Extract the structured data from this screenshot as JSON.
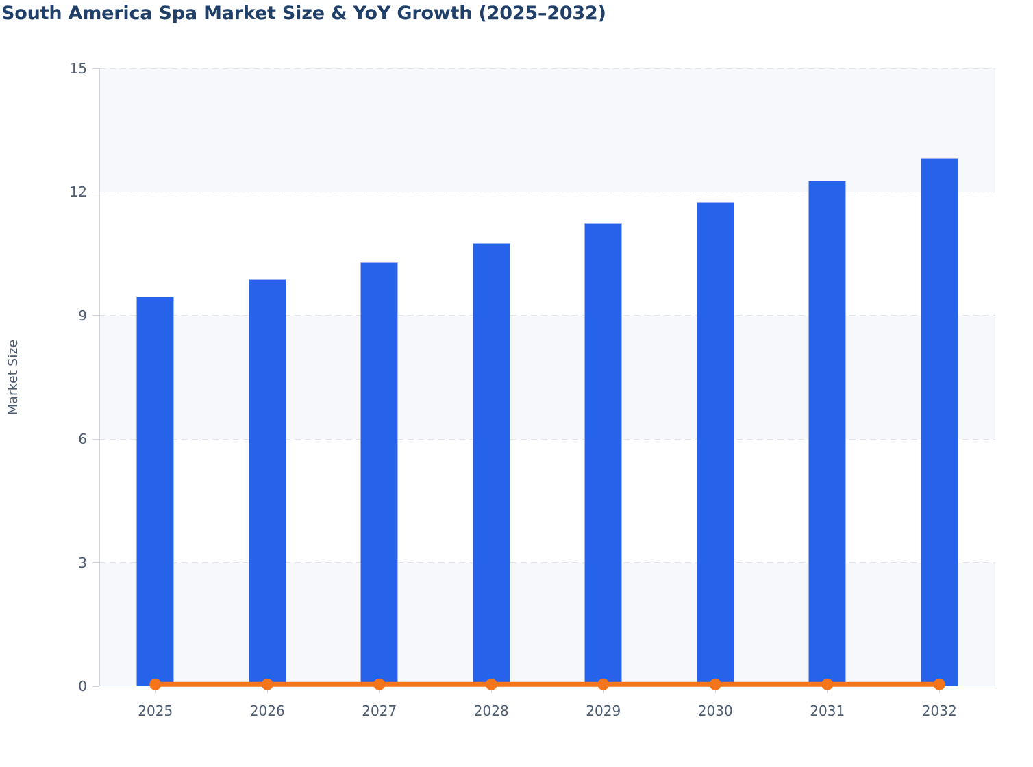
{
  "page": {
    "background": "#ffffff"
  },
  "chart_data": {
    "type": "bar",
    "title": "South America Spa Market Size & YoY Growth (2025–2032)",
    "ylabel": "Market Size",
    "xlabel": "",
    "categories": [
      "2025",
      "2026",
      "2027",
      "2028",
      "2029",
      "2030",
      "2031",
      "2032"
    ],
    "series": [
      {
        "name": "Market Size",
        "type": "column",
        "color": "#2663ea",
        "values": [
          9.46,
          9.87,
          10.3,
          10.76,
          11.24,
          11.76,
          12.28,
          12.82
        ]
      },
      {
        "name": "YoY Growth",
        "type": "line",
        "color": "#f5751a",
        "values": [
          0.045,
          0.045,
          0.045,
          0.045,
          0.045,
          0.045,
          0.045,
          0.045
        ]
      }
    ],
    "ylim": [
      0,
      15
    ],
    "yticks": [
      0,
      3,
      6,
      9,
      12,
      15
    ],
    "grid": "horizontal-dashed",
    "alternate_band_color": "#f7f8fb",
    "legend_position": "none",
    "title_color": "#20406a",
    "axis_label_color": "#4d5c72"
  }
}
